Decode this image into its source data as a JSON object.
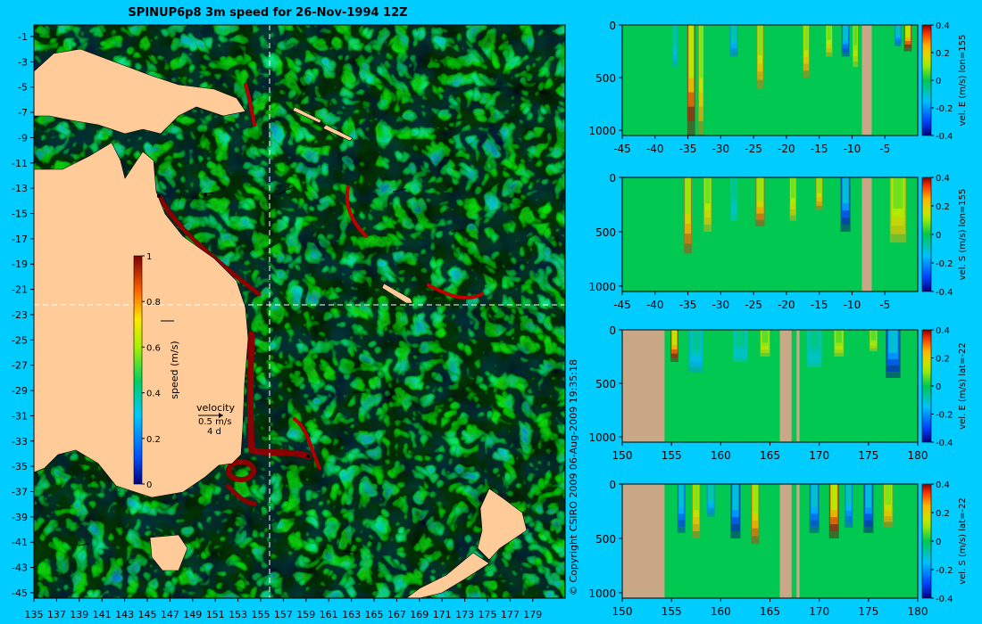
{
  "title": "SPINUP6p8 3m speed for 26-Nov-1994 12Z",
  "copyright": "© Copyright CSIRO 2009   06-Aug-2009 19:35:18",
  "colors": {
    "background": "#00ccff",
    "land": "#ffcc99",
    "section_land": "#c9a888",
    "guide_line": "#ffffff"
  },
  "map": {
    "lon_ticks": [
      "135",
      "137",
      "139",
      "141",
      "143",
      "145",
      "147",
      "149",
      "151",
      "153",
      "155",
      "157",
      "159",
      "161",
      "163",
      "165",
      "167",
      "169",
      "171",
      "173",
      "175",
      "177",
      "179"
    ],
    "lat_ticks": [
      "-1",
      "-3",
      "-5",
      "-7",
      "-9",
      "-11",
      "-13",
      "-15",
      "-17",
      "-19",
      "-21",
      "-23",
      "-25",
      "-27",
      "-29",
      "-31",
      "-33",
      "-35",
      "-37",
      "-39",
      "-41",
      "-43",
      "-45"
    ],
    "section_lon": 155,
    "section_lat": -22,
    "colorbar": {
      "label": "speed (m/s)",
      "ticks": [
        "0",
        "0.2",
        "0.4",
        "0.6",
        "0.8",
        "1"
      ],
      "min": 0,
      "max": 1
    },
    "velocity_key": {
      "title": "velocity",
      "speed": "0.5 m/s",
      "duration": "4 d"
    }
  },
  "chart_data": [
    {
      "type": "heatmap",
      "title": "",
      "ylabel_right": "vel. E (m/s) lon=155",
      "x_ticks": [
        "-45",
        "-40",
        "-35",
        "-30",
        "-25",
        "-20",
        "-15",
        "-10",
        "-5"
      ],
      "x_range": [
        -45,
        0
      ],
      "y_ticks": [
        "0",
        "500",
        "1000"
      ],
      "y_range": [
        0,
        1050
      ],
      "colorbar_ticks": [
        "0.4",
        "0.2",
        "0",
        "-0.2",
        "-0.4"
      ],
      "colorbar_range": [
        -0.4,
        0.4
      ],
      "land_x": [
        [
          -8.5,
          -7
        ]
      ],
      "features": [
        {
          "x": -34.5,
          "w": 1.2,
          "v": 0.45,
          "depth": 1050
        },
        {
          "x": -33,
          "w": 0.8,
          "v": 0.3,
          "depth": 1050
        },
        {
          "x": -37,
          "w": 0.8,
          "v": -0.2,
          "depth": 400
        },
        {
          "x": -28,
          "w": 1.2,
          "v": -0.25,
          "depth": 300
        },
        {
          "x": -24,
          "w": 1.0,
          "v": 0.3,
          "depth": 600
        },
        {
          "x": -17,
          "w": 1.0,
          "v": 0.3,
          "depth": 500
        },
        {
          "x": -13.5,
          "w": 1.0,
          "v": 0.25,
          "depth": 300
        },
        {
          "x": -11,
          "w": 1.2,
          "v": -0.35,
          "depth": 300
        },
        {
          "x": -9.5,
          "w": 0.8,
          "v": 0.2,
          "depth": 400
        },
        {
          "x": -1.5,
          "w": 1.2,
          "v": 0.45,
          "depth": 250
        },
        {
          "x": -3,
          "w": 1.0,
          "v": -0.3,
          "depth": 200
        }
      ]
    },
    {
      "type": "heatmap",
      "title": "",
      "ylabel_right": "vel. S (m/s) lon=155",
      "x_ticks": [
        "-45",
        "-40",
        "-35",
        "-30",
        "-25",
        "-20",
        "-15",
        "-10",
        "-5"
      ],
      "x_range": [
        -45,
        0
      ],
      "y_ticks": [
        "0",
        "500",
        "1000"
      ],
      "y_range": [
        0,
        1050
      ],
      "colorbar_ticks": [
        "0.4",
        "0.2",
        "0",
        "-0.2",
        "-0.4"
      ],
      "colorbar_range": [
        -0.4,
        0.4
      ],
      "land_x": [
        [
          -8.5,
          -7
        ]
      ],
      "features": [
        {
          "x": -35,
          "w": 1.2,
          "v": 0.35,
          "depth": 700
        },
        {
          "x": -32,
          "w": 1.2,
          "v": 0.25,
          "depth": 500
        },
        {
          "x": -28,
          "w": 1.0,
          "v": -0.15,
          "depth": 400
        },
        {
          "x": -24,
          "w": 1.4,
          "v": 0.35,
          "depth": 450
        },
        {
          "x": -19,
          "w": 1.0,
          "v": 0.25,
          "depth": 400
        },
        {
          "x": -15,
          "w": 1.0,
          "v": 0.3,
          "depth": 300
        },
        {
          "x": -11,
          "w": 1.5,
          "v": -0.4,
          "depth": 500
        },
        {
          "x": -3,
          "w": 2.5,
          "v": 0.25,
          "depth": 600
        }
      ]
    },
    {
      "type": "heatmap",
      "title": "",
      "ylabel_right": "vel. E (m/s) lat=-22",
      "x_ticks": [
        "150",
        "155",
        "160",
        "165",
        "170",
        "175",
        "180"
      ],
      "x_range": [
        150,
        180
      ],
      "y_ticks": [
        "0",
        "500",
        "1000"
      ],
      "y_range": [
        0,
        1050
      ],
      "colorbar_ticks": [
        "0.4",
        "0.2",
        "0",
        "-0.2",
        "-0.4"
      ],
      "colorbar_range": [
        -0.4,
        0.4
      ],
      "land_x": [
        [
          150,
          154.3
        ],
        [
          166,
          167.2
        ],
        [
          167.7,
          168
        ]
      ],
      "features": [
        {
          "x": 155.3,
          "w": 0.8,
          "v": 0.45,
          "depth": 300
        },
        {
          "x": 157.5,
          "w": 1.5,
          "v": -0.2,
          "depth": 400
        },
        {
          "x": 162,
          "w": 1.5,
          "v": -0.15,
          "depth": 300
        },
        {
          "x": 164.5,
          "w": 1.0,
          "v": 0.2,
          "depth": 250
        },
        {
          "x": 169.5,
          "w": 1.5,
          "v": -0.15,
          "depth": 350
        },
        {
          "x": 172,
          "w": 1.0,
          "v": 0.2,
          "depth": 250
        },
        {
          "x": 177.5,
          "w": 1.5,
          "v": -0.4,
          "depth": 450
        },
        {
          "x": 175.5,
          "w": 0.8,
          "v": 0.2,
          "depth": 200
        }
      ]
    },
    {
      "type": "heatmap",
      "title": "",
      "ylabel_right": "vel. S (m/s) lat=-22",
      "x_ticks": [
        "150",
        "155",
        "160",
        "165",
        "170",
        "175",
        "180"
      ],
      "x_range": [
        150,
        180
      ],
      "y_ticks": [
        "0",
        "500",
        "1000"
      ],
      "y_range": [
        0,
        1050
      ],
      "colorbar_ticks": [
        "0.4",
        "0.2",
        "0",
        "-0.2",
        "-0.4"
      ],
      "colorbar_range": [
        -0.4,
        0.4
      ],
      "land_x": [
        [
          150,
          154.3
        ],
        [
          166,
          167.2
        ],
        [
          167.7,
          168
        ]
      ],
      "features": [
        {
          "x": 156,
          "w": 0.8,
          "v": -0.35,
          "depth": 450
        },
        {
          "x": 157.5,
          "w": 0.8,
          "v": 0.3,
          "depth": 500
        },
        {
          "x": 159,
          "w": 0.8,
          "v": -0.25,
          "depth": 300
        },
        {
          "x": 161.5,
          "w": 1.0,
          "v": -0.4,
          "depth": 500
        },
        {
          "x": 163.5,
          "w": 0.8,
          "v": 0.35,
          "depth": 550
        },
        {
          "x": 169.5,
          "w": 1.0,
          "v": -0.35,
          "depth": 450
        },
        {
          "x": 171.5,
          "w": 1.0,
          "v": 0.45,
          "depth": 500
        },
        {
          "x": 173,
          "w": 0.8,
          "v": -0.3,
          "depth": 400
        },
        {
          "x": 175,
          "w": 1.0,
          "v": -0.4,
          "depth": 450
        },
        {
          "x": 177,
          "w": 1.0,
          "v": 0.3,
          "depth": 400
        }
      ]
    }
  ]
}
